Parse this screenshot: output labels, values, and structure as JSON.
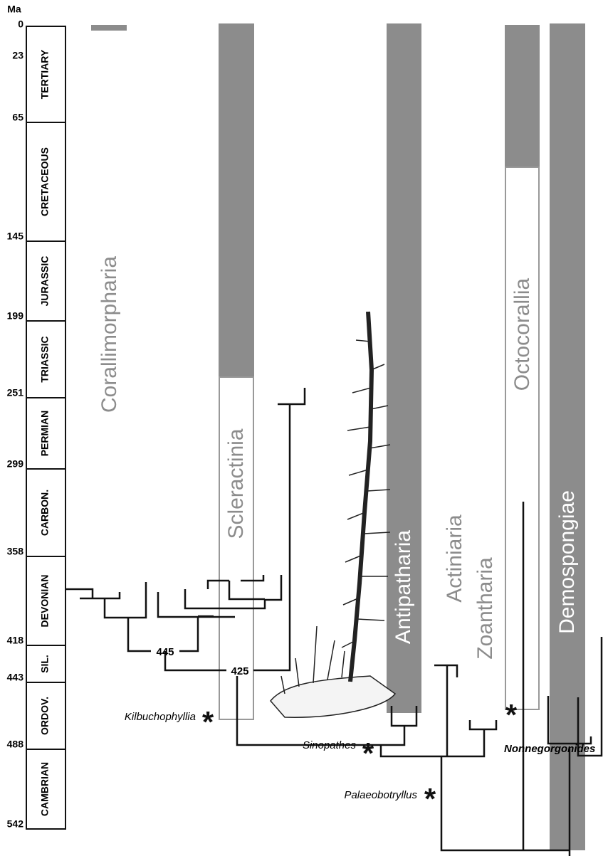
{
  "axis_label": "Ma",
  "ages": [
    "0",
    "23",
    "65",
    "145",
    "199",
    "251",
    "299",
    "358",
    "418",
    "443",
    "488",
    "542"
  ],
  "periods": [
    "TERTIARY",
    "CRETACEOUS",
    "JURASSIC",
    "TRIASSIC",
    "PERMIAN",
    "CARBON.",
    "DEVONIAN",
    "SIL.",
    "ORDOV.",
    "CAMBRIAN"
  ],
  "taxa": [
    "Corallimorpharia",
    "Scleractinia",
    "Antipatharia",
    "Actiniaria",
    "Zoantharia",
    "Octocorallia",
    "Demospongiae"
  ],
  "node_ages": [
    "445",
    "425"
  ],
  "fossils": [
    "Kilbuchophyllia",
    "Sinopathes",
    "Palaeobotryllus",
    "Nonnegorgonides"
  ]
}
